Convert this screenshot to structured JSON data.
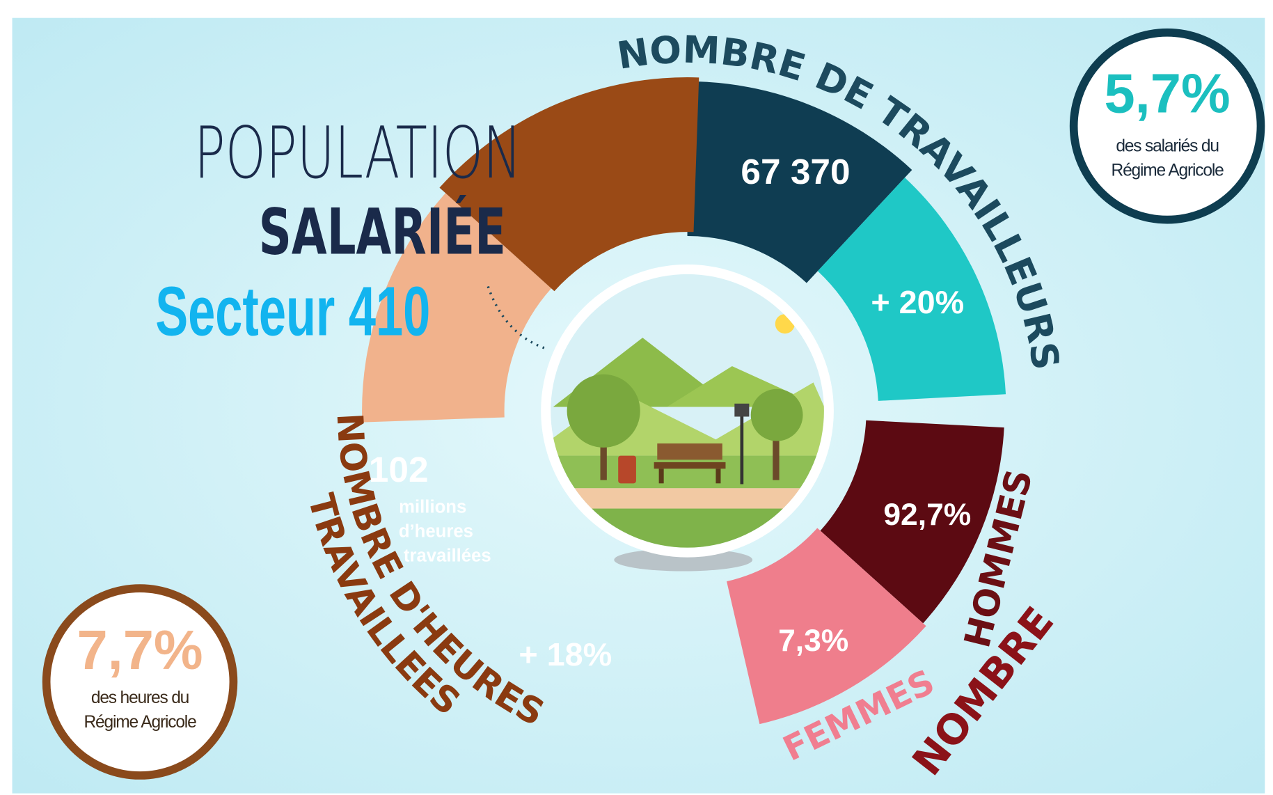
{
  "header": {
    "title_line1": "POPULATION",
    "title_line2": "SALARIÉE",
    "subtitle": "Secteur 410"
  },
  "workers": {
    "label": "NOMBRE DE TRAVAILLEURS",
    "count": "67 370",
    "change": "+ 20%"
  },
  "hours": {
    "label_line1": "NOMBRE D'HEURES",
    "label_line2": "TRAVAILLEES",
    "count": "102",
    "unit_lines": [
      "millions",
      "d’heures",
      "travaillées"
    ],
    "change": "+ 18%"
  },
  "gender": {
    "men_share": "92,7%",
    "women_share": "7,3%",
    "men_label": "HOMMES",
    "women_label": "FEMMES",
    "label": "NOMBRE"
  },
  "badge_workers": {
    "value": "5,7%",
    "lines": [
      "des salariés du",
      "Régime Agricole"
    ]
  },
  "badge_hours": {
    "value": "7,7%",
    "lines": [
      "des heures du",
      "Régime Agricole"
    ]
  }
}
